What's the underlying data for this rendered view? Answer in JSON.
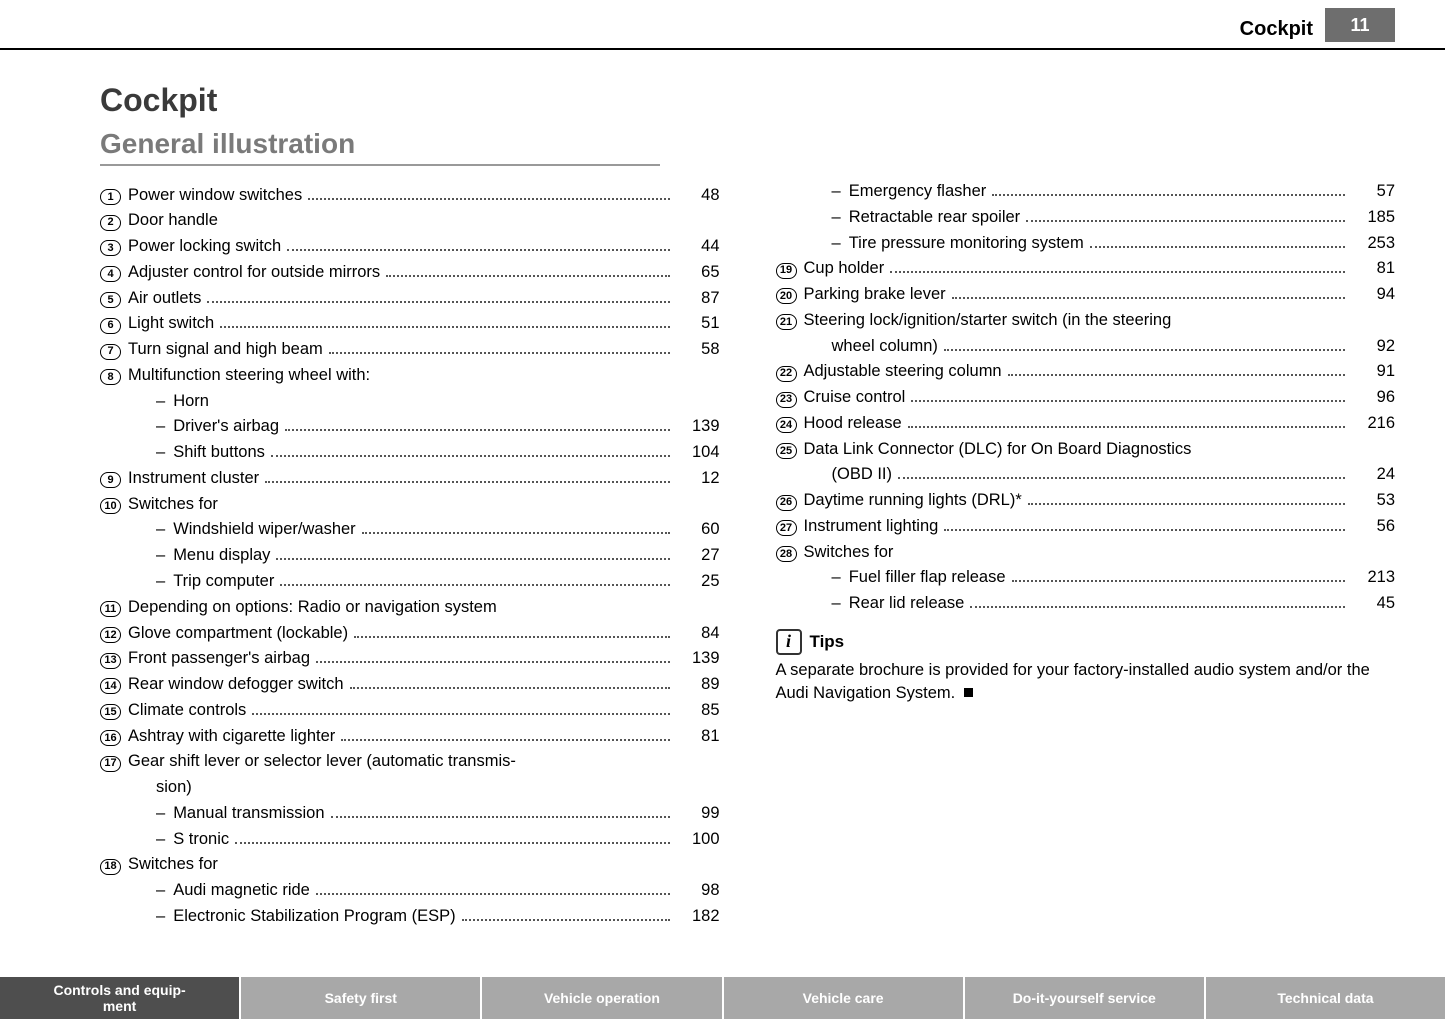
{
  "header": {
    "section": "Cockpit",
    "page_number": "11",
    "pagebox_bg": "#6e6e6e"
  },
  "chapter_title": "Cockpit",
  "section_title": "General illustration",
  "toc": [
    {
      "num": "1",
      "label": "Power window switches",
      "page": "48"
    },
    {
      "num": "2",
      "label": "Door handle"
    },
    {
      "num": "3",
      "label": "Power locking switch",
      "page": "44"
    },
    {
      "num": "4",
      "label": "Adjuster control for outside mirrors",
      "page": "65"
    },
    {
      "num": "5",
      "label": "Air outlets",
      "page": "87"
    },
    {
      "num": "6",
      "label": "Light switch",
      "page": "51"
    },
    {
      "num": "7",
      "label": "Turn signal and high beam",
      "page": "58"
    },
    {
      "num": "8",
      "label": "Multifunction steering wheel with:"
    },
    {
      "sub": true,
      "label": "Horn"
    },
    {
      "sub": true,
      "label": "Driver's airbag",
      "page": "139"
    },
    {
      "sub": true,
      "label": "Shift buttons",
      "page": "104"
    },
    {
      "num": "9",
      "label": "Instrument cluster",
      "page": "12"
    },
    {
      "num": "10",
      "label": "Switches for"
    },
    {
      "sub": true,
      "label": "Windshield wiper/washer",
      "page": "60"
    },
    {
      "sub": true,
      "label": "Menu display",
      "page": "27"
    },
    {
      "sub": true,
      "label": "Trip computer",
      "page": "25"
    },
    {
      "num": "11",
      "label": "Depending on options: Radio or navigation system"
    },
    {
      "num": "12",
      "label": "Glove compartment (lockable)",
      "page": "84"
    },
    {
      "num": "13",
      "label": "Front passenger's airbag",
      "page": "139"
    },
    {
      "num": "14",
      "label": "Rear window defogger switch",
      "page": "89"
    },
    {
      "num": "15",
      "label": "Climate controls",
      "page": "85"
    },
    {
      "num": "16",
      "label": "Ashtray with cigarette lighter",
      "page": "81"
    },
    {
      "num": "17",
      "label": "Gear shift lever or selector lever (automatic transmis-"
    },
    {
      "cont": true,
      "label": "sion)"
    },
    {
      "sub": true,
      "label": "Manual transmission",
      "page": "99"
    },
    {
      "sub": true,
      "label": "S tronic",
      "page": "100"
    },
    {
      "num": "18",
      "label": "Switches for"
    },
    {
      "sub": true,
      "label": "Audi magnetic ride",
      "page": "98"
    },
    {
      "sub": true,
      "label": "Electronic Stabilization Program (ESP)",
      "page": "182"
    },
    {
      "sub": true,
      "label": "Emergency flasher",
      "page": "57"
    },
    {
      "sub": true,
      "label": "Retractable rear spoiler",
      "page": "185"
    },
    {
      "sub": true,
      "label": "Tire pressure monitoring system",
      "page": "253"
    },
    {
      "num": "19",
      "label": "Cup holder",
      "page": "81"
    },
    {
      "num": "20",
      "label": "Parking brake lever",
      "page": "94"
    },
    {
      "num": "21",
      "label": "Steering lock/ignition/starter switch (in the steering"
    },
    {
      "cont": true,
      "label": "wheel column)",
      "page": "92"
    },
    {
      "num": "22",
      "label": "Adjustable steering column",
      "page": "91"
    },
    {
      "num": "23",
      "label": "Cruise control",
      "page": "96"
    },
    {
      "num": "24",
      "label": "Hood release",
      "page": "216"
    },
    {
      "num": "25",
      "label": "Data Link Connector (DLC) for On Board Diagnostics"
    },
    {
      "cont": true,
      "label": "(OBD II)",
      "page": "24"
    },
    {
      "num": "26",
      "label": "Daytime running lights (DRL)*",
      "page": "53"
    },
    {
      "num": "27",
      "label": "Instrument lighting",
      "page": "56"
    },
    {
      "num": "28",
      "label": "Switches for"
    },
    {
      "sub": true,
      "label": "Fuel filler flap release",
      "page": "213"
    },
    {
      "sub": true,
      "label": "Rear lid release",
      "page": "45"
    }
  ],
  "tips": {
    "heading": "Tips",
    "body": "A separate brochure is provided for your factory-installed audio system and/or the Audi Navigation System."
  },
  "footer": {
    "tabs": [
      {
        "label": "Controls and equip-\nment",
        "active": true
      },
      {
        "label": "Safety first",
        "active": false
      },
      {
        "label": "Vehicle operation",
        "active": false
      },
      {
        "label": "Vehicle care",
        "active": false
      },
      {
        "label": "Do-it-yourself service",
        "active": false
      },
      {
        "label": "Technical data",
        "active": false
      }
    ],
    "active_bg": "#4e4e4e",
    "inactive_bg": "#a8a8a8"
  }
}
